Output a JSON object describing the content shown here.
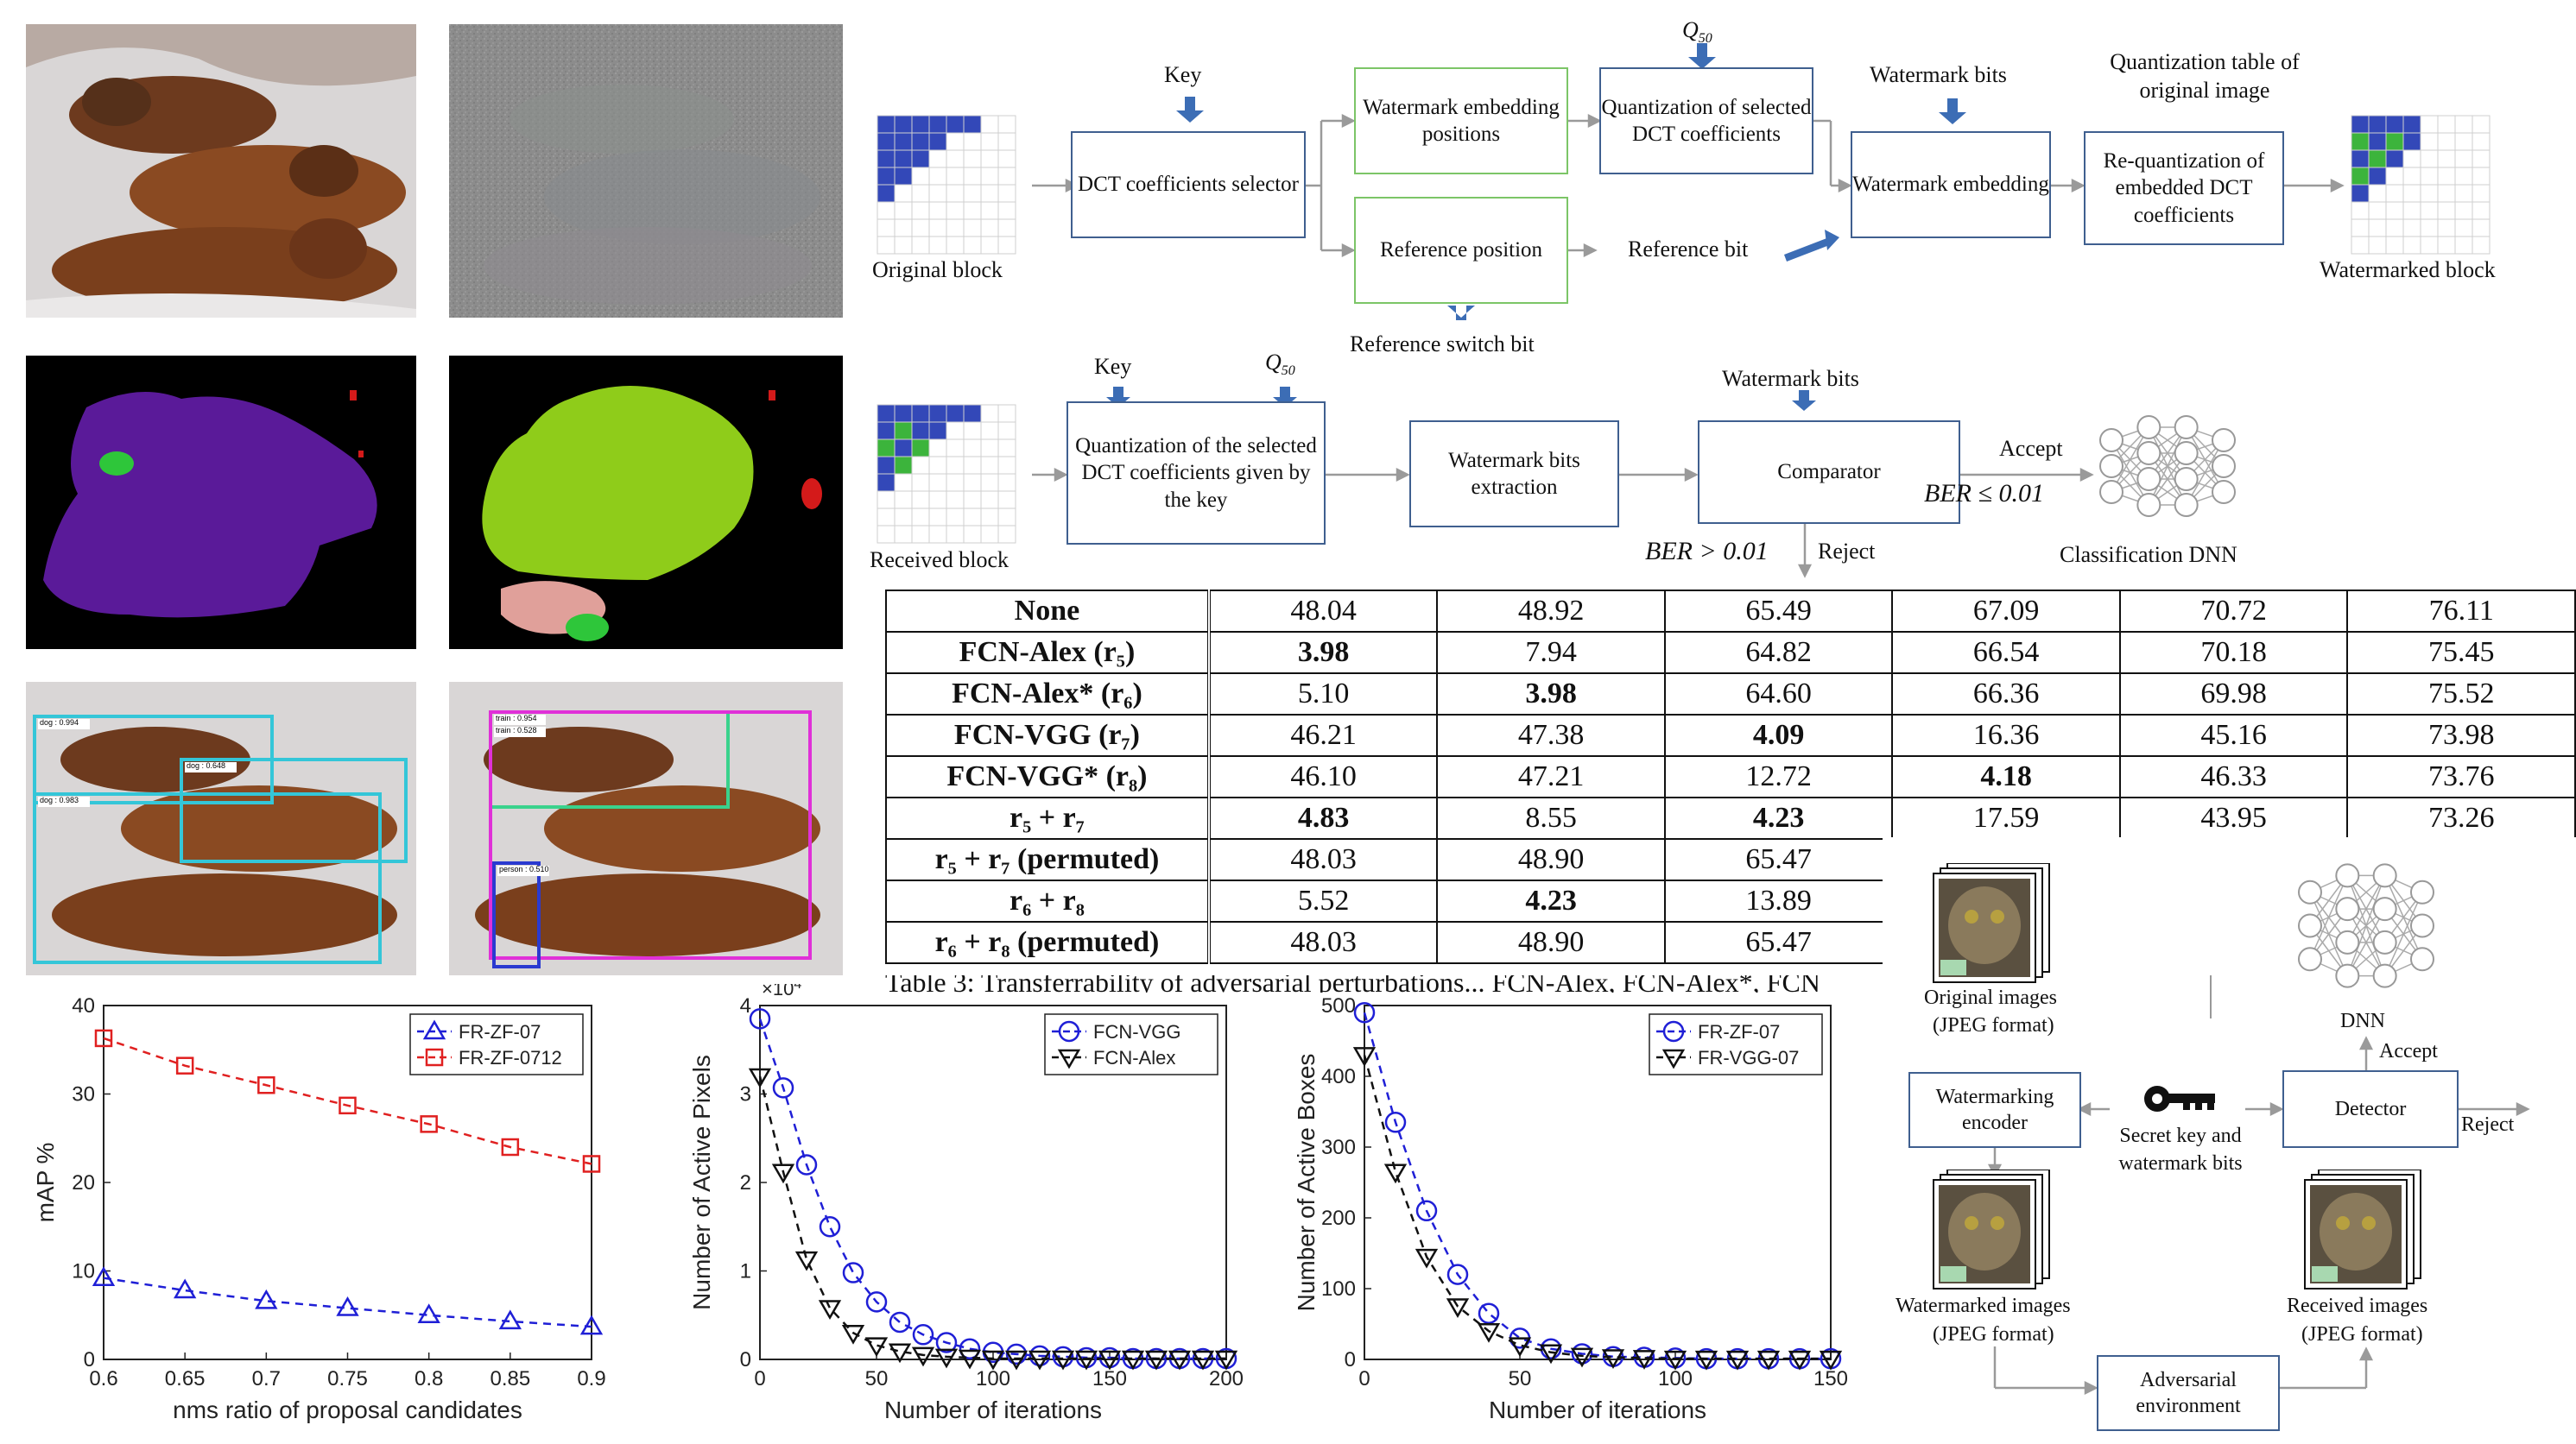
{
  "fig_dct": {
    "key_label": "Key",
    "q50_label": "Q",
    "q50_sub": "50",
    "original_block": "Original block",
    "dct_selector": "DCT coefficients selector",
    "wm_positions": "Watermark embedding positions",
    "ref_position": "Reference position",
    "ref_switch": "Reference switch bit",
    "quant_selected": "Quantization of selected DCT coefficients",
    "wm_bits": "Watermark bits",
    "ref_bit": "Reference bit",
    "wm_embedding": "Watermark embedding",
    "qtable_label": "Quantization table of original image",
    "requant": "Re-quantization of embedded DCT coefficients",
    "wm_block": "Watermarked block"
  },
  "fig_detect": {
    "key_label": "Key",
    "received_block": "Received block",
    "quant_given_key": "Quantization of the selected DCT coefficients given by the key",
    "wm_extraction": "Watermark bits extraction",
    "wm_bits": "Watermark bits",
    "comparator": "Comparator",
    "accept": "Accept",
    "ber_accept": "BER ≤ 0.01",
    "ber_reject": "BER > 0.01",
    "reject": "Reject",
    "classification": "Classification DNN"
  },
  "table": {
    "rows": [
      {
        "name": "None",
        "vals": [
          "48.04",
          "48.92",
          "65.49",
          "67.09",
          "70.72",
          "76.11"
        ],
        "bold": []
      },
      {
        "name": "FCN-Alex (r₅)",
        "vals": [
          "3.98",
          "7.94",
          "64.82",
          "66.54",
          "70.18",
          "75.45"
        ],
        "bold": [
          0
        ]
      },
      {
        "name": "FCN-Alex* (r₆)",
        "vals": [
          "5.10",
          "3.98",
          "64.60",
          "66.36",
          "69.98",
          "75.52"
        ],
        "bold": [
          1
        ]
      },
      {
        "name": "FCN-VGG (r₇)",
        "vals": [
          "46.21",
          "47.38",
          "4.09",
          "16.36",
          "45.16",
          "73.98"
        ],
        "bold": [
          2
        ]
      },
      {
        "name": "FCN-VGG* (r₈)",
        "vals": [
          "46.10",
          "47.21",
          "12.72",
          "4.18",
          "46.33",
          "73.76"
        ],
        "bold": [
          3
        ]
      },
      {
        "name": "r₅ + r₇",
        "vals": [
          "4.83",
          "8.55",
          "4.23",
          "17.59",
          "43.95",
          "73.26"
        ],
        "bold": [
          0,
          2
        ]
      },
      {
        "name": "r₅ + r₇ (permuted)",
        "vals": [
          "48.03",
          "48.90",
          "65.47"
        ],
        "bold": []
      },
      {
        "name": "r₆ + r₈",
        "vals": [
          "5.52",
          "4.23",
          "13.89"
        ],
        "bold": [
          1
        ]
      },
      {
        "name": "r₆ + r₈ (permuted)",
        "vals": [
          "48.03",
          "48.90",
          "65.47"
        ],
        "bold": []
      }
    ],
    "caption": "Table 3: Transferrability of adversarial perturbations... FCN-Alex, FCN-Alex*, FCN"
  },
  "fig_enc": {
    "original_images": "Original images",
    "jpeg": "(JPEG format)",
    "wm_encoder": "Watermarking encoder",
    "secret": "Secret key and watermark bits",
    "detector": "Detector",
    "dnn": "DNN",
    "accept": "Accept",
    "reject": "Reject",
    "wm_images": "Watermarked images",
    "received_images": "Received images",
    "adversarial": "Adversarial environment"
  },
  "detections_left": [
    "dog : 0.994",
    "dog : 0.648",
    "dog : 0.983"
  ],
  "detections_right": [
    "train : 0.954",
    "train : 0.528",
    "person : 0.510"
  ],
  "colors": {
    "blue": "#1f1fd6",
    "red": "#e02020",
    "black": "#111111",
    "box": "#3f5f8f",
    "green": "#7cc567"
  },
  "chart_data": [
    {
      "type": "line",
      "xlabel": "nms ratio of proposal candidates",
      "ylabel": "mAP %",
      "xlim": [
        0.6,
        0.9
      ],
      "ylim": [
        0,
        40
      ],
      "xticks": [
        "0.6",
        "0.65",
        "0.7",
        "0.75",
        "0.8",
        "0.85",
        "0.9"
      ],
      "yticks": [
        "0",
        "10",
        "20",
        "30",
        "40"
      ],
      "legend_position": "top-right",
      "series": [
        {
          "name": "FR-ZF-07",
          "x": [
            0.6,
            0.65,
            0.7,
            0.75,
            0.8,
            0.85,
            0.9
          ],
          "values": [
            9.2,
            7.8,
            6.6,
            5.8,
            5.0,
            4.3,
            3.7
          ],
          "color": "#1f1fd6",
          "marker": "triangle"
        },
        {
          "name": "FR-ZF-0712",
          "x": [
            0.6,
            0.65,
            0.7,
            0.75,
            0.8,
            0.85,
            0.9
          ],
          "values": [
            36.3,
            33.2,
            31.0,
            28.7,
            26.6,
            24.0,
            22.1
          ],
          "color": "#e02020",
          "marker": "square"
        }
      ]
    },
    {
      "type": "line",
      "xlabel": "Number of iterations",
      "ylabel": "Number of Active Pixels",
      "exponent_label": "×10",
      "exponent": "4",
      "xlim": [
        0,
        200
      ],
      "ylim": [
        0,
        4
      ],
      "xticks": [
        "0",
        "50",
        "100",
        "150",
        "200"
      ],
      "yticks": [
        "0",
        "1",
        "2",
        "3",
        "4"
      ],
      "legend_position": "top-right",
      "series": [
        {
          "name": "FCN-VGG",
          "x": [
            0,
            10,
            20,
            30,
            40,
            50,
            60,
            70,
            80,
            90,
            100,
            110,
            120,
            130,
            140,
            150,
            160,
            170,
            180,
            190,
            200
          ],
          "values": [
            3.85,
            3.07,
            2.2,
            1.5,
            0.98,
            0.65,
            0.42,
            0.28,
            0.19,
            0.12,
            0.08,
            0.06,
            0.04,
            0.03,
            0.02,
            0.02,
            0.01,
            0.01,
            0.01,
            0.01,
            0.01
          ],
          "color": "#1f1fd6",
          "marker": "circle"
        },
        {
          "name": "FCN-Alex",
          "x": [
            0,
            10,
            20,
            30,
            40,
            50,
            60,
            70,
            80,
            90,
            100,
            110,
            120,
            130,
            140,
            150,
            160,
            170,
            180,
            190,
            200
          ],
          "values": [
            3.2,
            2.12,
            1.13,
            0.58,
            0.3,
            0.16,
            0.09,
            0.05,
            0.03,
            0.02,
            0.01,
            0.01,
            0.01,
            0.01,
            0.01,
            0.01,
            0.01,
            0.01,
            0.01,
            0.01,
            0.01
          ],
          "color": "#111111",
          "marker": "triangle-down"
        }
      ]
    },
    {
      "type": "line",
      "xlabel": "Number of iterations",
      "ylabel": "Number of Active Boxes",
      "xlim": [
        0,
        150
      ],
      "ylim": [
        0,
        500
      ],
      "xticks": [
        "0",
        "50",
        "100",
        "150"
      ],
      "yticks": [
        "0",
        "100",
        "200",
        "300",
        "400",
        "500"
      ],
      "legend_position": "top-right",
      "series": [
        {
          "name": "FR-ZF-07",
          "x": [
            0,
            10,
            20,
            30,
            40,
            50,
            60,
            70,
            80,
            90,
            100,
            110,
            120,
            130,
            140,
            150
          ],
          "values": [
            490,
            335,
            210,
            120,
            65,
            30,
            15,
            8,
            4,
            3,
            2,
            1,
            1,
            1,
            1,
            1
          ],
          "color": "#1f1fd6",
          "marker": "circle"
        },
        {
          "name": "FR-VGG-07",
          "x": [
            0,
            10,
            20,
            30,
            40,
            50,
            60,
            70,
            80,
            90,
            100,
            110,
            120,
            130,
            140,
            150
          ],
          "values": [
            430,
            265,
            145,
            75,
            40,
            20,
            10,
            5,
            3,
            2,
            1,
            1,
            1,
            1,
            1,
            1
          ],
          "color": "#111111",
          "marker": "triangle-down"
        }
      ]
    }
  ]
}
